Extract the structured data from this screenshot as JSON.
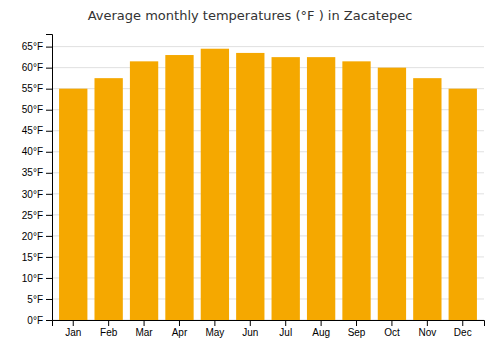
{
  "chart_data": {
    "type": "bar",
    "title": "Average monthly temperatures (°F ) in Zacatepec",
    "categories": [
      "Jan",
      "Feb",
      "Mar",
      "Apr",
      "May",
      "Jun",
      "Jul",
      "Aug",
      "Sep",
      "Oct",
      "Nov",
      "Dec"
    ],
    "values": [
      55.0,
      57.5,
      61.5,
      63.0,
      64.5,
      63.5,
      62.5,
      62.5,
      61.5,
      60.0,
      57.5,
      55.0
    ],
    "color": "#F5A800",
    "ylim": [
      0,
      68
    ],
    "yticks": [
      {
        "value": 0,
        "label": "0°F"
      },
      {
        "value": 5,
        "label": "5°F"
      },
      {
        "value": 10,
        "label": "10°F"
      },
      {
        "value": 15,
        "label": "15°F"
      },
      {
        "value": 20,
        "label": "20°F"
      },
      {
        "value": 25,
        "label": "25°F"
      },
      {
        "value": 30,
        "label": "30°F"
      },
      {
        "value": 35,
        "label": "35°F"
      },
      {
        "value": 40,
        "label": "40°F"
      },
      {
        "value": 45,
        "label": "45°F"
      },
      {
        "value": 50,
        "label": "50°F"
      },
      {
        "value": 55,
        "label": "55°F"
      },
      {
        "value": 60,
        "label": "60°F"
      },
      {
        "value": 65,
        "label": "65°F"
      }
    ],
    "grid": true
  }
}
